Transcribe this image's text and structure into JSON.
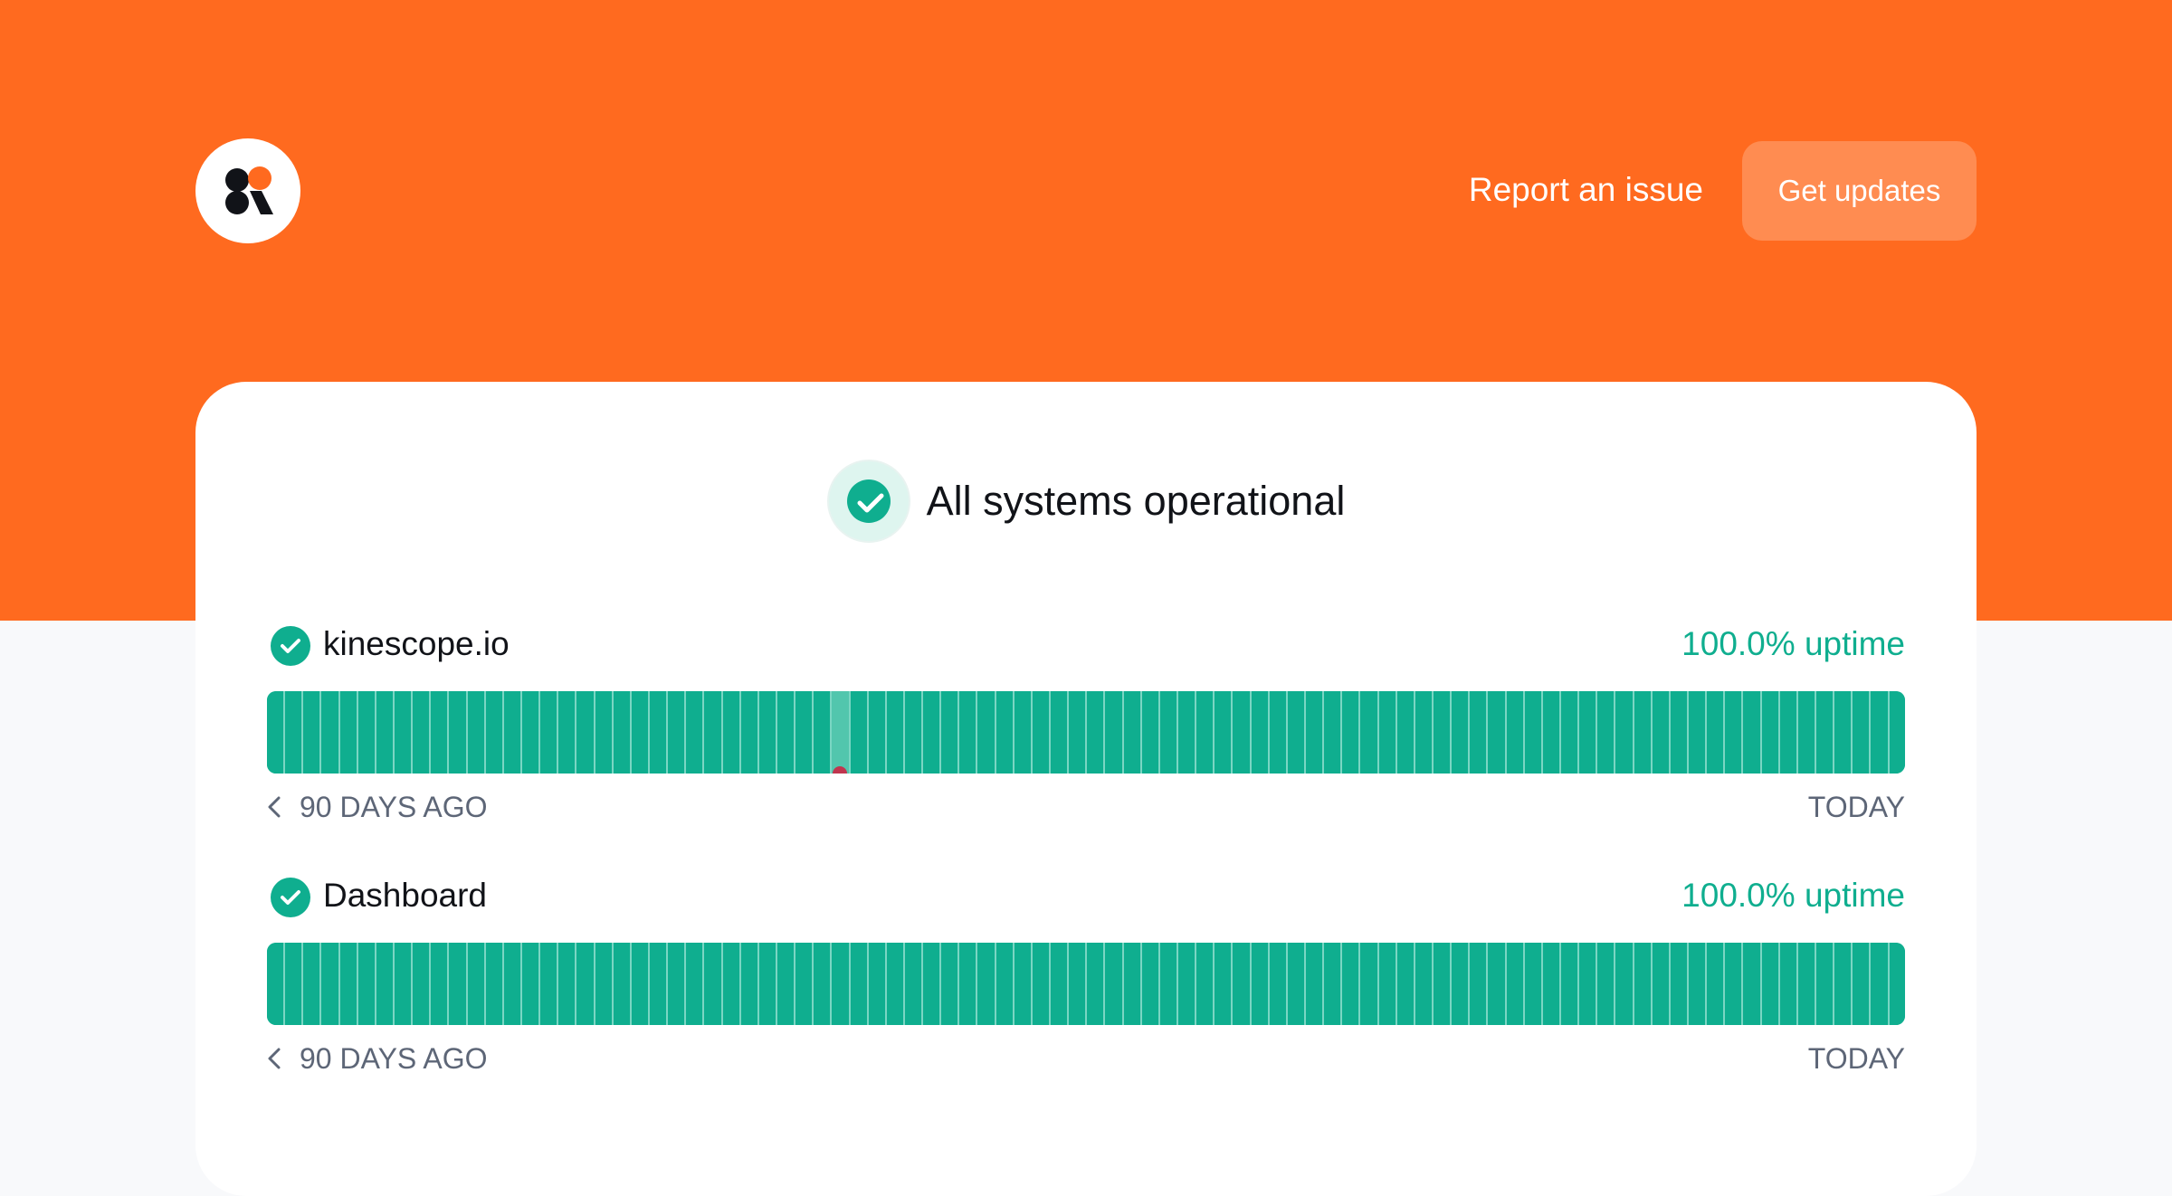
{
  "header": {
    "logo_icon": "kinescope-logo-icon",
    "report_link": "Report an issue",
    "updates_button": "Get updates"
  },
  "colors": {
    "brand": "#ff6a1f",
    "operational": "#0fae8f",
    "incident": "#c0364f"
  },
  "status": {
    "icon": "check-circle-icon",
    "title": "All systems operational"
  },
  "components": [
    {
      "name": "kinescope.io",
      "uptime": "100.0% uptime",
      "days_count": 90,
      "minor_days": [
        31
      ],
      "incident_days": [
        31
      ],
      "range_start": "90 DAYS AGO",
      "range_end": "TODAY"
    },
    {
      "name": "Dashboard",
      "uptime": "100.0% uptime",
      "days_count": 90,
      "minor_days": [],
      "incident_days": [],
      "range_start": "90 DAYS AGO",
      "range_end": "TODAY"
    }
  ]
}
